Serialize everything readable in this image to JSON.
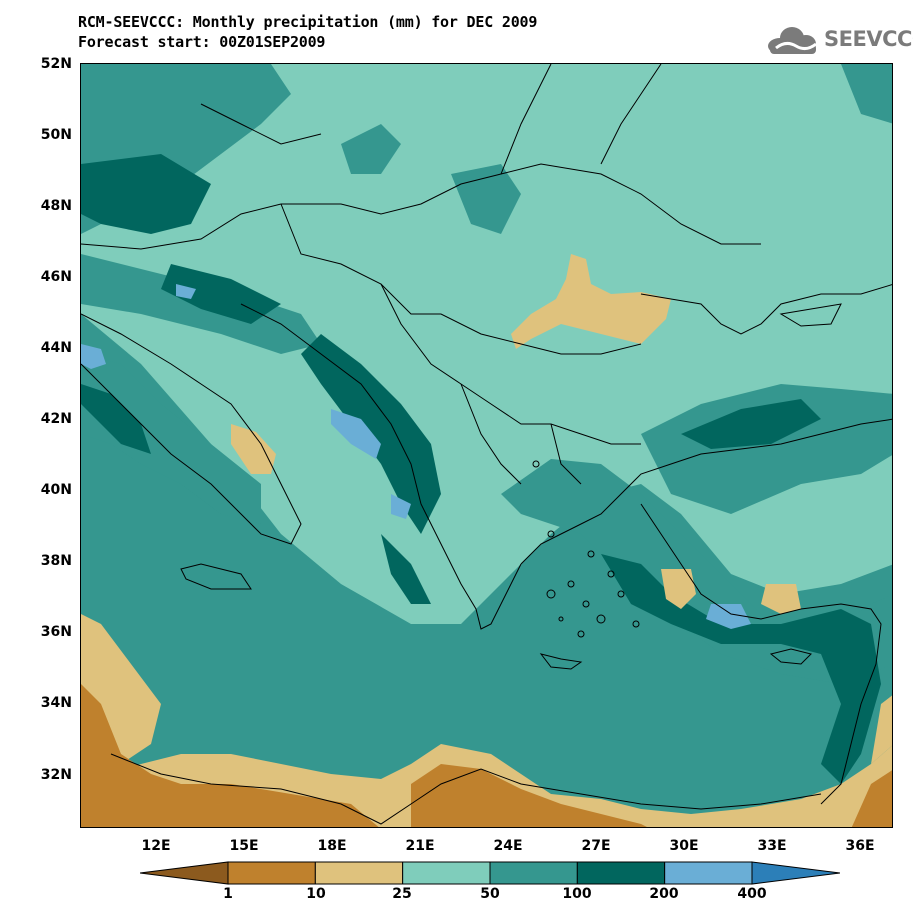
{
  "title_line1": "RCM-SEEVCCC: Monthly precipitation (mm) for DEC 2009",
  "title_line2": "Forecast start: 00Z01SEP2009",
  "logo_text": "SEEVCCC",
  "logo_icon": "cloud-icon",
  "map": {
    "lat_labels": [
      "52N",
      "50N",
      "48N",
      "46N",
      "44N",
      "42N",
      "40N",
      "38N",
      "36N",
      "34N",
      "32N"
    ],
    "lon_labels": [
      "12E",
      "15E",
      "18E",
      "21E",
      "24E",
      "27E",
      "30E",
      "33E",
      "36E"
    ],
    "lat_range": [
      30.5,
      52
    ],
    "lon_range": [
      9.8,
      37.5
    ]
  },
  "legend": {
    "boundaries": [
      "1",
      "10",
      "25",
      "50",
      "100",
      "200",
      "400"
    ],
    "colors": [
      "#8c5a1e",
      "#bf812d",
      "#dfc27d",
      "#7fcdbb",
      "#35978f",
      "#01665e",
      "#6aaed6",
      "#2c7fb8"
    ]
  }
}
